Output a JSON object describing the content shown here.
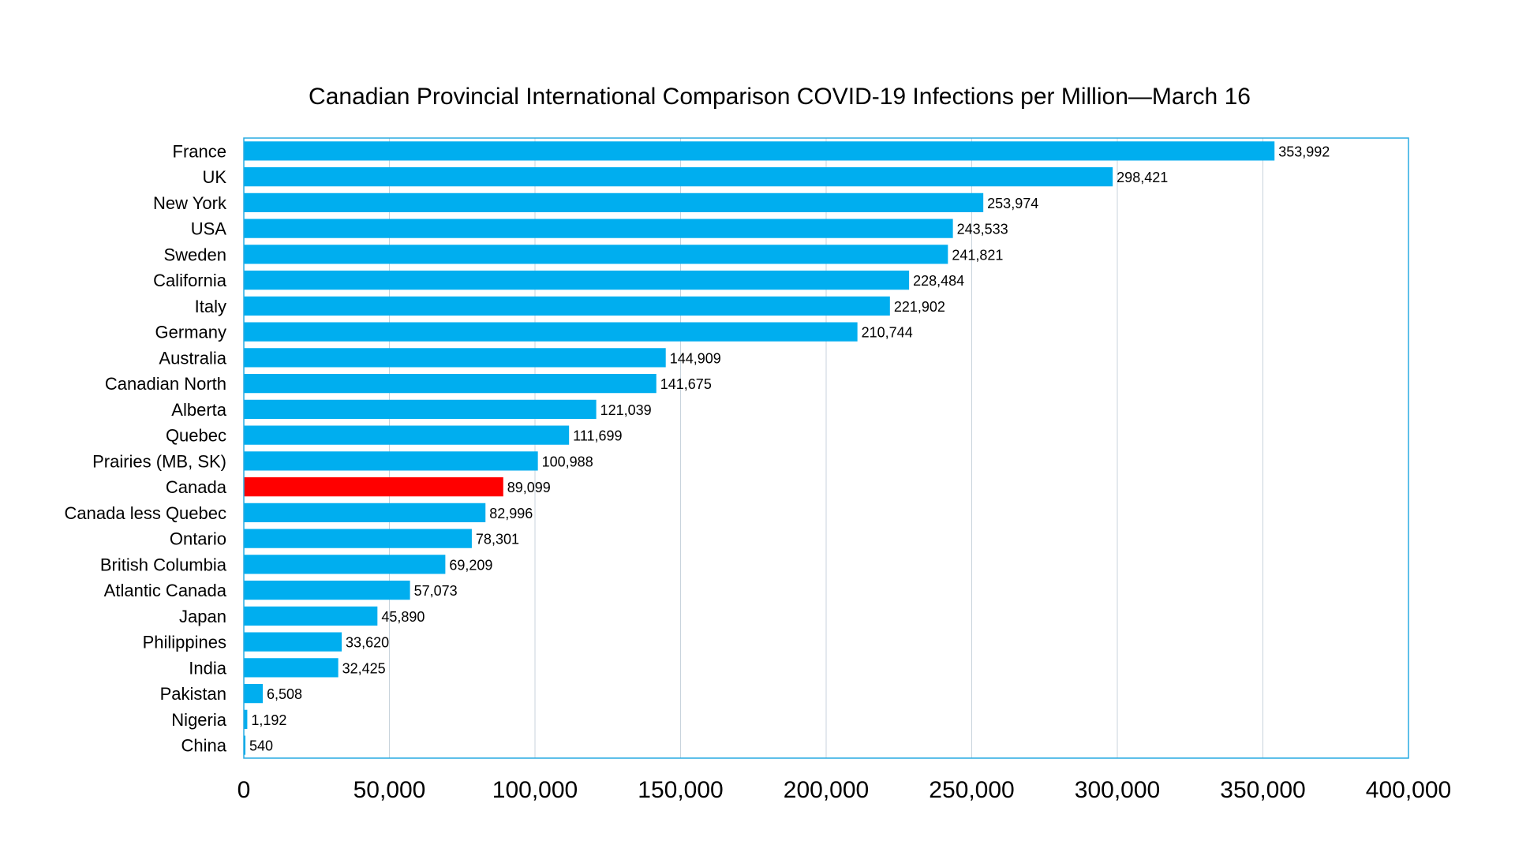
{
  "chart_data": {
    "type": "bar",
    "orientation": "horizontal",
    "title": "Canadian Provincial International Comparison COVID-19 Infections per Million—March 16",
    "xlabel": "",
    "ylabel": "",
    "xlim": [
      0,
      400000
    ],
    "x_ticks": [
      0,
      50000,
      100000,
      150000,
      200000,
      250000,
      300000,
      350000,
      400000
    ],
    "x_tick_labels": [
      "0",
      "50,000",
      "100,000",
      "150,000",
      "200,000",
      "250,000",
      "300,000",
      "350,000",
      "400,000"
    ],
    "grid": "vertical",
    "legend": "none",
    "categories": [
      "France",
      "UK",
      "New York",
      "USA",
      "Sweden",
      "California",
      "Italy",
      "Germany",
      "Australia",
      "Canadian North",
      "Alberta",
      "Quebec",
      "Prairies (MB, SK)",
      "Canada",
      "Canada less Quebec",
      "Ontario",
      "British Columbia",
      "Atlantic Canada",
      "Japan",
      "Philippines",
      "India",
      "Pakistan",
      "Nigeria",
      "China"
    ],
    "values": [
      353992,
      298421,
      253974,
      243533,
      241821,
      228484,
      221902,
      210744,
      144909,
      141675,
      121039,
      111699,
      100988,
      89099,
      82996,
      78301,
      69209,
      57073,
      45890,
      33620,
      32425,
      6508,
      1192,
      540
    ],
    "value_labels": [
      "353,992",
      "298,421",
      "253,974",
      "243,533",
      "241,821",
      "228,484",
      "221,902",
      "210,744",
      "144,909",
      "141,675",
      "121,039",
      "111,699",
      "100,988",
      "89,099",
      "82,996",
      "78,301",
      "69,209",
      "57,073",
      "45,890",
      "33,620",
      "32,425",
      "6,508",
      "1,192",
      "540"
    ],
    "highlight_index": 13,
    "colors": {
      "bar": "#00AEEF",
      "highlight": "#FF0000",
      "plot_border": "#29ABE2",
      "grid": "#C8D3DC"
    }
  }
}
